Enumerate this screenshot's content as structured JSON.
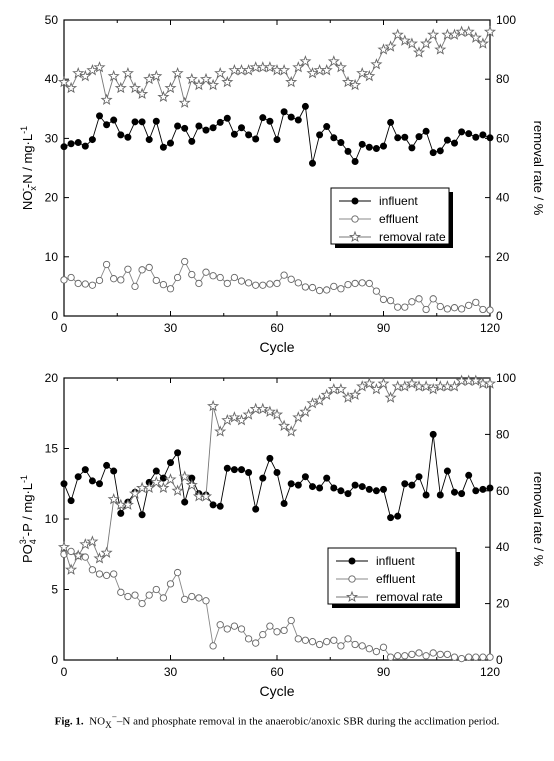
{
  "chart_data": [
    {
      "type": "line",
      "x": [
        0,
        2,
        4,
        6,
        8,
        10,
        12,
        14,
        16,
        18,
        20,
        22,
        24,
        26,
        28,
        30,
        32,
        34,
        36,
        38,
        40,
        42,
        44,
        46,
        48,
        50,
        52,
        54,
        56,
        58,
        60,
        62,
        64,
        66,
        68,
        70,
        72,
        74,
        76,
        78,
        80,
        82,
        84,
        86,
        88,
        90,
        92,
        94,
        96,
        98,
        100,
        102,
        104,
        106,
        108,
        110,
        112,
        114,
        116,
        118,
        120
      ],
      "series": [
        {
          "name": "influent",
          "axis": "left",
          "marker": "filled-circle",
          "values": [
            28.6,
            29.1,
            29.3,
            28.7,
            29.8,
            33.8,
            32.3,
            33.1,
            30.6,
            30.2,
            32.8,
            32.8,
            29.8,
            32.9,
            28.5,
            29.2,
            32.1,
            31.7,
            29.5,
            32.1,
            31.4,
            31.8,
            32.7,
            33.4,
            30.7,
            31.8,
            30.6,
            29.9,
            33.5,
            32.9,
            29.8,
            34.5,
            33.6,
            33.1,
            35.4,
            25.8,
            30.6,
            32.0,
            30.1,
            29.3,
            27.8,
            26.1,
            29.0,
            28.5,
            28.3,
            28.7,
            32.7,
            30.1,
            30.2,
            28.4,
            30.3,
            31.2,
            27.6,
            27.9,
            29.7,
            29.2,
            31.1,
            30.8,
            30.2,
            30.6,
            30.1
          ]
        },
        {
          "name": "effluent",
          "axis": "left",
          "marker": "open-circle",
          "values": [
            6.1,
            6.5,
            5.5,
            5.4,
            5.2,
            6.0,
            8.7,
            6.3,
            6.1,
            7.9,
            5.0,
            7.8,
            8.2,
            6.0,
            5.3,
            4.6,
            6.5,
            9.2,
            7.0,
            5.5,
            7.4,
            6.8,
            6.5,
            5.5,
            6.5,
            5.9,
            5.6,
            5.2,
            5.2,
            5.4,
            5.5,
            6.9,
            6.2,
            5.6,
            4.9,
            4.8,
            4.3,
            4.4,
            5.0,
            4.6,
            5.3,
            5.5,
            5.6,
            5.5,
            4.2,
            2.8,
            2.6,
            1.5,
            1.5,
            2.4,
            2.9,
            1.1,
            2.9,
            1.6,
            1.2,
            1.4,
            1.2,
            1.8,
            2.3,
            1.1,
            1.0
          ]
        },
        {
          "name": "removal rate",
          "axis": "right",
          "marker": "open-star",
          "values": [
            79,
            77,
            82,
            81,
            83,
            84,
            73,
            81,
            77,
            82,
            77,
            75,
            80,
            81,
            74,
            77,
            82,
            72,
            80,
            78,
            80,
            78,
            82,
            79,
            83,
            83,
            83,
            84,
            84,
            84,
            83,
            83,
            79,
            84,
            86,
            82,
            83,
            83,
            86,
            84,
            79,
            78,
            82,
            81,
            85,
            90,
            91,
            95,
            93,
            92,
            89,
            92,
            95,
            90,
            95,
            95,
            96,
            96,
            94,
            92,
            96
          ]
        }
      ],
      "xlabel": "Cycle",
      "ylabel": "NOx-N / mg·L-1",
      "ylabel_base": "NO",
      "ylabel_sub": "x",
      "ylabel_sup": "-",
      "ylabel_rest": "-N / mg·L",
      "ylabel_exp": "-1",
      "y2label": "removal rate / %",
      "xlim": [
        0,
        120
      ],
      "ylim": [
        0,
        50
      ],
      "y2lim": [
        0,
        100
      ],
      "xticks": [
        "0",
        "30",
        "60",
        "90",
        "120"
      ],
      "yticks": [
        "0",
        "10",
        "20",
        "30",
        "40",
        "50"
      ],
      "y2ticks": [
        "0",
        "20",
        "40",
        "60",
        "80",
        "100"
      ],
      "legend": [
        "influent",
        "effluent",
        "removal rate"
      ],
      "legend_placement": "right-middle",
      "grid": false
    },
    {
      "type": "line",
      "x": [
        0,
        2,
        4,
        6,
        8,
        10,
        12,
        14,
        16,
        18,
        20,
        22,
        24,
        26,
        28,
        30,
        32,
        34,
        36,
        38,
        40,
        42,
        44,
        46,
        48,
        50,
        52,
        54,
        56,
        58,
        60,
        62,
        64,
        66,
        68,
        70,
        72,
        74,
        76,
        78,
        80,
        82,
        84,
        86,
        88,
        90,
        92,
        94,
        96,
        98,
        100,
        102,
        104,
        106,
        108,
        110,
        112,
        114,
        116,
        118,
        120
      ],
      "series": [
        {
          "name": "influent",
          "axis": "left",
          "marker": "filled-circle",
          "values": [
            12.5,
            11.3,
            13.0,
            13.5,
            12.7,
            12.5,
            13.8,
            13.4,
            10.4,
            11.2,
            11.9,
            10.3,
            12.6,
            13.4,
            12.9,
            14.0,
            14.7,
            11.2,
            12.9,
            11.8,
            11.7,
            11.0,
            10.9,
            13.6,
            13.5,
            13.5,
            13.3,
            10.7,
            12.9,
            14.3,
            13.3,
            11.1,
            12.5,
            12.4,
            13.0,
            12.3,
            12.2,
            12.9,
            12.2,
            12.0,
            11.8,
            12.4,
            12.3,
            12.1,
            12.0,
            12.1,
            10.1,
            10.2,
            12.5,
            12.4,
            13.0,
            11.7,
            16.0,
            11.7,
            13.4,
            11.9,
            11.8,
            13.1,
            12.0,
            12.1,
            12.2
          ]
        },
        {
          "name": "effluent",
          "axis": "left",
          "marker": "open-circle",
          "values": [
            7.5,
            7.7,
            7.4,
            7.3,
            6.4,
            6.1,
            6.0,
            6.1,
            4.8,
            4.5,
            4.6,
            4.0,
            4.6,
            5.0,
            4.4,
            5.4,
            6.2,
            4.3,
            4.5,
            4.4,
            4.2,
            1.0,
            2.5,
            2.2,
            2.4,
            2.2,
            1.5,
            1.2,
            1.8,
            2.4,
            2.0,
            2.1,
            2.8,
            1.5,
            1.4,
            1.3,
            1.1,
            1.3,
            1.4,
            1.0,
            1.5,
            1.1,
            1.0,
            0.8,
            0.6,
            0.9,
            0.2,
            0.3,
            0.3,
            0.4,
            0.5,
            0.3,
            0.5,
            0.4,
            0.4,
            0.2,
            0.1,
            0.2,
            0.2,
            0.2,
            0.2
          ]
        },
        {
          "name": "removal rate",
          "axis": "right",
          "marker": "open-star",
          "values": [
            40,
            32,
            37,
            41,
            42,
            36,
            38,
            57,
            55,
            55,
            59,
            61,
            61,
            63,
            61,
            64,
            60,
            65,
            62,
            58,
            58,
            90,
            81,
            85,
            86,
            85,
            87,
            89,
            89,
            88,
            87,
            83,
            81,
            86,
            88,
            91,
            92,
            94,
            96,
            96,
            93,
            94,
            97,
            98,
            96,
            98,
            93,
            97,
            97,
            98,
            97,
            97,
            96,
            97,
            97,
            97,
            99,
            99,
            99,
            98,
            98
          ]
        }
      ],
      "xlabel": "Cycle",
      "ylabel": "PO43--P / mg·L-1",
      "ylabel_base": "PO",
      "ylabel_sub": "4",
      "ylabel_sup": "3-",
      "ylabel_rest": "-P / mg·L",
      "ylabel_exp": "-1",
      "y2label": "removal rate / %",
      "xlim": [
        0,
        120
      ],
      "ylim": [
        0,
        20
      ],
      "y2lim": [
        0,
        100
      ],
      "xticks": [
        "0",
        "30",
        "60",
        "90",
        "120"
      ],
      "yticks": [
        "0",
        "5",
        "10",
        "15",
        "20"
      ],
      "y2ticks": [
        "0",
        "20",
        "40",
        "60",
        "80",
        "100"
      ],
      "legend": [
        "influent",
        "effluent",
        "removal rate"
      ],
      "legend_placement": "bottom-right",
      "grid": false
    }
  ],
  "caption": {
    "label": "Fig. 1.",
    "text_main": "NOx-N and phosphate removal in the anaerobic/anoxic SBR during the acclimation period.",
    "pre": "NO",
    "sub": "X",
    "sup": "−",
    "post": "–N and phosphate removal in the anaerobic/anoxic SBR during the acclimation period."
  }
}
